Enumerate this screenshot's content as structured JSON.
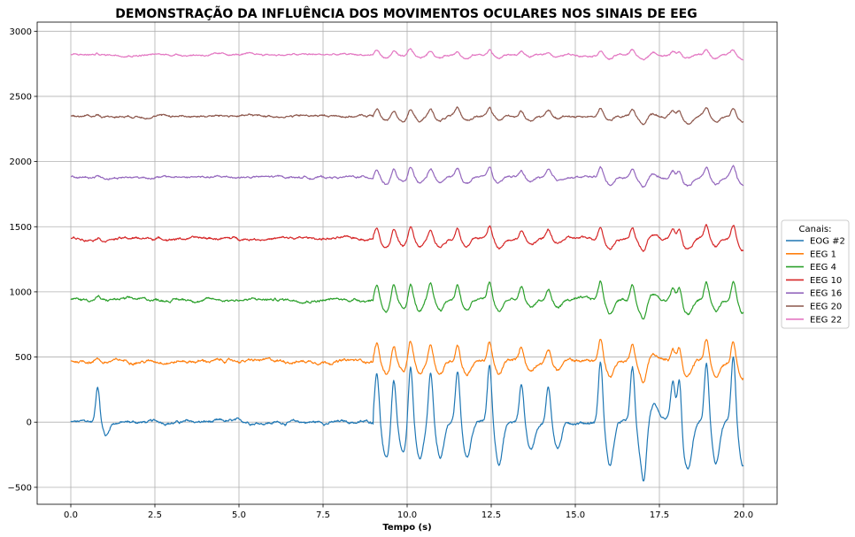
{
  "chart_data": {
    "type": "line",
    "title": "DEMONSTRAÇÃO DA INFLUÊNCIA DOS MOVIMENTOS OCULARES NOS SINAIS DE EEG",
    "xlabel": "Tempo (s)",
    "ylabel": "",
    "xlim": [
      -1.0,
      21.0
    ],
    "ylim": [
      -630,
      3070
    ],
    "xticks": [
      0.0,
      2.5,
      5.0,
      7.5,
      10.0,
      12.5,
      15.0,
      17.5,
      20.0
    ],
    "xtick_labels": [
      "0.0",
      "2.5",
      "5.0",
      "7.5",
      "10.0",
      "12.5",
      "15.0",
      "17.5",
      "20.0"
    ],
    "yticks": [
      -500,
      0,
      500,
      1000,
      1500,
      2000,
      2500,
      3000
    ],
    "ytick_labels": [
      "−500",
      "0",
      "500",
      "1000",
      "1500",
      "2000",
      "2500",
      "3000"
    ],
    "grid": true,
    "legend": {
      "title": "Canais:",
      "placement": "right"
    },
    "eye_movement_times": [
      9.1,
      9.6,
      10.1,
      10.7,
      11.5,
      12.45,
      13.4,
      14.2,
      15.75,
      16.7,
      17.05,
      17.9,
      18.1,
      18.9,
      19.7
    ],
    "series": [
      {
        "name": "EOG #2",
        "color": "#1f77b4",
        "offset": 0,
        "approx_range": [
          -450,
          480
        ]
      },
      {
        "name": "EEG 1",
        "color": "#ff7f0e",
        "offset": 470,
        "approx_range": [
          380,
          590
        ]
      },
      {
        "name": "EEG 4",
        "color": "#2ca02c",
        "offset": 940,
        "approx_range": [
          840,
          1030
        ]
      },
      {
        "name": "EEG 10",
        "color": "#d62728",
        "offset": 1410,
        "approx_range": [
          1330,
          1480
        ]
      },
      {
        "name": "EEG 16",
        "color": "#9467bd",
        "offset": 1880,
        "approx_range": [
          1820,
          1940
        ]
      },
      {
        "name": "EEG 20",
        "color": "#8c564b",
        "offset": 2350,
        "approx_range": [
          2290,
          2410
        ]
      },
      {
        "name": "EEG 22",
        "color": "#e377c2",
        "offset": 2820,
        "approx_range": [
          2750,
          2880
        ]
      }
    ]
  }
}
